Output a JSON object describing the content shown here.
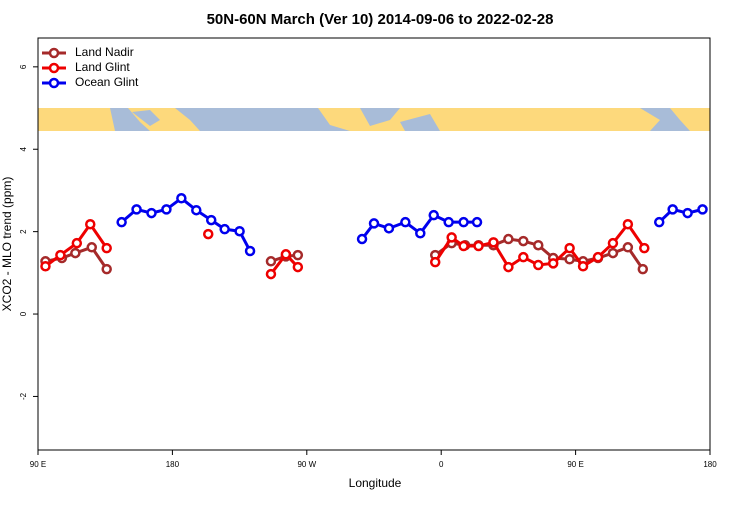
{
  "chart_data": {
    "type": "line",
    "title": "50N-60N March (Ver 10)   2014-09-06 to 2022-02-28",
    "x_label": "Longitude",
    "y_label": "XCO2 - MLO trend (ppm)",
    "xlim": [
      90,
      540
    ],
    "xticks": [
      {
        "value": 90,
        "label": "90 E"
      },
      180,
      {
        "value": 270,
        "label": "90 W"
      },
      {
        "value": 360,
        "label": "0"
      },
      {
        "value": 450,
        "label": "90 E"
      },
      {
        "value": 540,
        "label": "180"
      }
    ],
    "ylim": [
      -3.3,
      6.7
    ],
    "yticks": [
      -2,
      0,
      2,
      4,
      6
    ],
    "legend": "top-left",
    "series": [
      {
        "name": "Land Nadir",
        "color": "#a52a2a",
        "x": [
          95,
          106,
          115,
          126,
          136,
          null,
          246,
          256,
          264,
          null,
          356,
          367,
          376,
          385,
          395,
          405,
          415,
          425,
          435,
          446,
          455,
          465,
          475,
          485,
          495
        ],
        "values": [
          1.28,
          1.36,
          1.48,
          1.62,
          1.09,
          null,
          1.28,
          1.4,
          1.43,
          null,
          1.43,
          1.72,
          1.67,
          1.67,
          1.67,
          1.82,
          1.77,
          1.67,
          1.36,
          1.33,
          1.28,
          1.36,
          1.48,
          1.62,
          1.09
        ]
      },
      {
        "name": "Land Glint",
        "color": "#ee0000",
        "x": [
          95,
          105,
          116,
          125,
          136,
          null,
          204,
          null,
          246,
          256,
          264,
          null,
          356,
          367,
          375,
          385,
          395,
          405,
          415,
          425,
          435,
          446,
          455,
          465,
          475,
          485,
          496
        ],
        "values": [
          1.16,
          1.43,
          1.72,
          2.18,
          1.6,
          null,
          1.94,
          null,
          0.97,
          1.45,
          1.14,
          null,
          1.26,
          1.86,
          1.65,
          1.65,
          1.74,
          1.14,
          1.38,
          1.19,
          1.23,
          1.6,
          1.16,
          1.38,
          1.72,
          2.18,
          1.6
        ]
      },
      {
        "name": "Ocean Glint",
        "color": "#0000ee",
        "x": [
          146,
          156,
          166,
          176,
          186,
          196,
          206,
          215,
          225,
          232,
          null,
          307,
          315,
          325,
          336,
          346,
          355,
          365,
          375,
          384,
          null,
          506,
          515,
          525,
          535
        ],
        "values": [
          2.23,
          2.54,
          2.45,
          2.54,
          2.81,
          2.52,
          2.28,
          2.06,
          2.01,
          1.53,
          null,
          1.82,
          2.2,
          2.08,
          2.23,
          1.96,
          2.4,
          2.23,
          2.23,
          2.23,
          null,
          2.23,
          2.54,
          2.45,
          2.54
        ]
      }
    ]
  }
}
